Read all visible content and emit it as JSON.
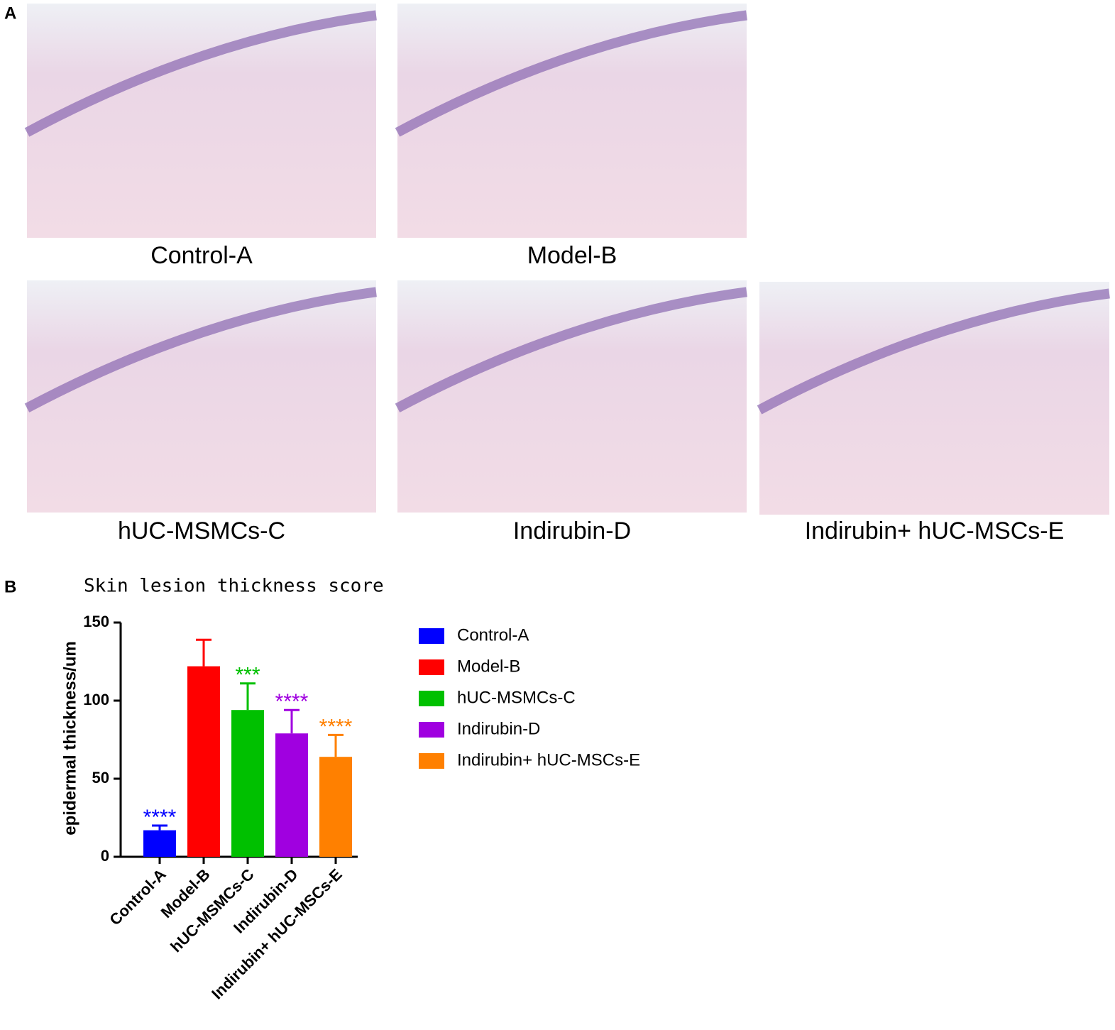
{
  "panel_a": {
    "label": "A",
    "images": [
      {
        "caption": "Control-A"
      },
      {
        "caption": "Model-B"
      },
      {
        "caption": "hUC-MSMCs-C"
      },
      {
        "caption": "Indirubin-D"
      },
      {
        "caption": "Indirubin+ hUC-MSCs-E"
      }
    ]
  },
  "chart_data": {
    "type": "bar",
    "panel_label": "B",
    "title": "Skin lesion thickness score",
    "y_label": "epidermal thickness/um",
    "categories": [
      "Control-A",
      "Model-B",
      "hUC-MSMCs-C",
      "Indirubin-D",
      "Indirubin+ hUC-MSCs-E"
    ],
    "values": [
      17,
      122,
      94,
      79,
      64
    ],
    "errors": [
      3,
      17,
      17,
      15,
      14
    ],
    "colors": [
      "#0000ff",
      "#ff0000",
      "#00c000",
      "#a000e0",
      "#ff8000"
    ],
    "significance": [
      "****",
      null,
      "***",
      "****",
      "****"
    ],
    "ylim": [
      0,
      150
    ],
    "yticks": [
      0,
      50,
      100,
      150
    ],
    "legend": "right"
  }
}
